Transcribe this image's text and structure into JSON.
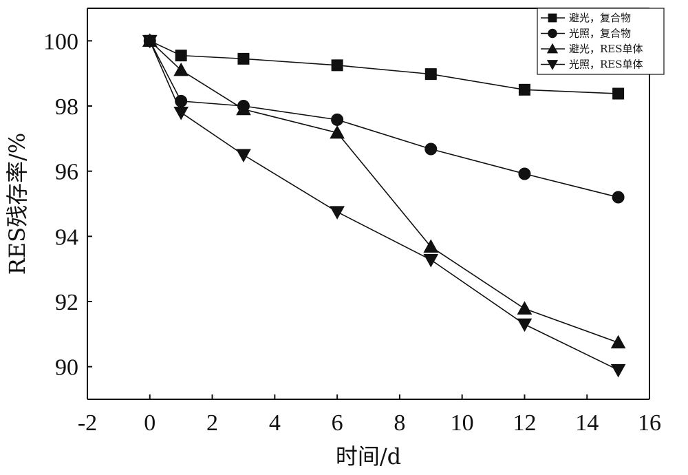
{
  "chart_data": {
    "type": "line",
    "title": "",
    "xlabel": "时间/d",
    "ylabel": "RES残存率/%",
    "xlim": [
      -2,
      16
    ],
    "ylim": [
      89,
      101
    ],
    "xticks": [
      -2,
      0,
      2,
      4,
      6,
      8,
      10,
      12,
      14,
      16
    ],
    "yticks": [
      90,
      92,
      94,
      96,
      98,
      100
    ],
    "x": [
      0,
      1,
      3,
      6,
      9,
      12,
      15
    ],
    "grid": false,
    "legend_position": "top-right",
    "series": [
      {
        "name": "避光，复合物",
        "marker": "square",
        "values": [
          100,
          99.55,
          99.45,
          99.25,
          98.98,
          98.5,
          98.38
        ]
      },
      {
        "name": "光照，复合物",
        "marker": "circle",
        "values": [
          100,
          98.15,
          98.0,
          97.58,
          96.68,
          95.92,
          95.2
        ]
      },
      {
        "name": "避光，RES单体",
        "marker": "triangle-up",
        "values": [
          100,
          99.1,
          97.9,
          97.18,
          93.68,
          91.78,
          90.74
        ]
      },
      {
        "name": "光照，RES单体",
        "marker": "triangle-down",
        "values": [
          100,
          97.8,
          96.5,
          94.75,
          93.28,
          91.3,
          89.9
        ]
      }
    ]
  }
}
